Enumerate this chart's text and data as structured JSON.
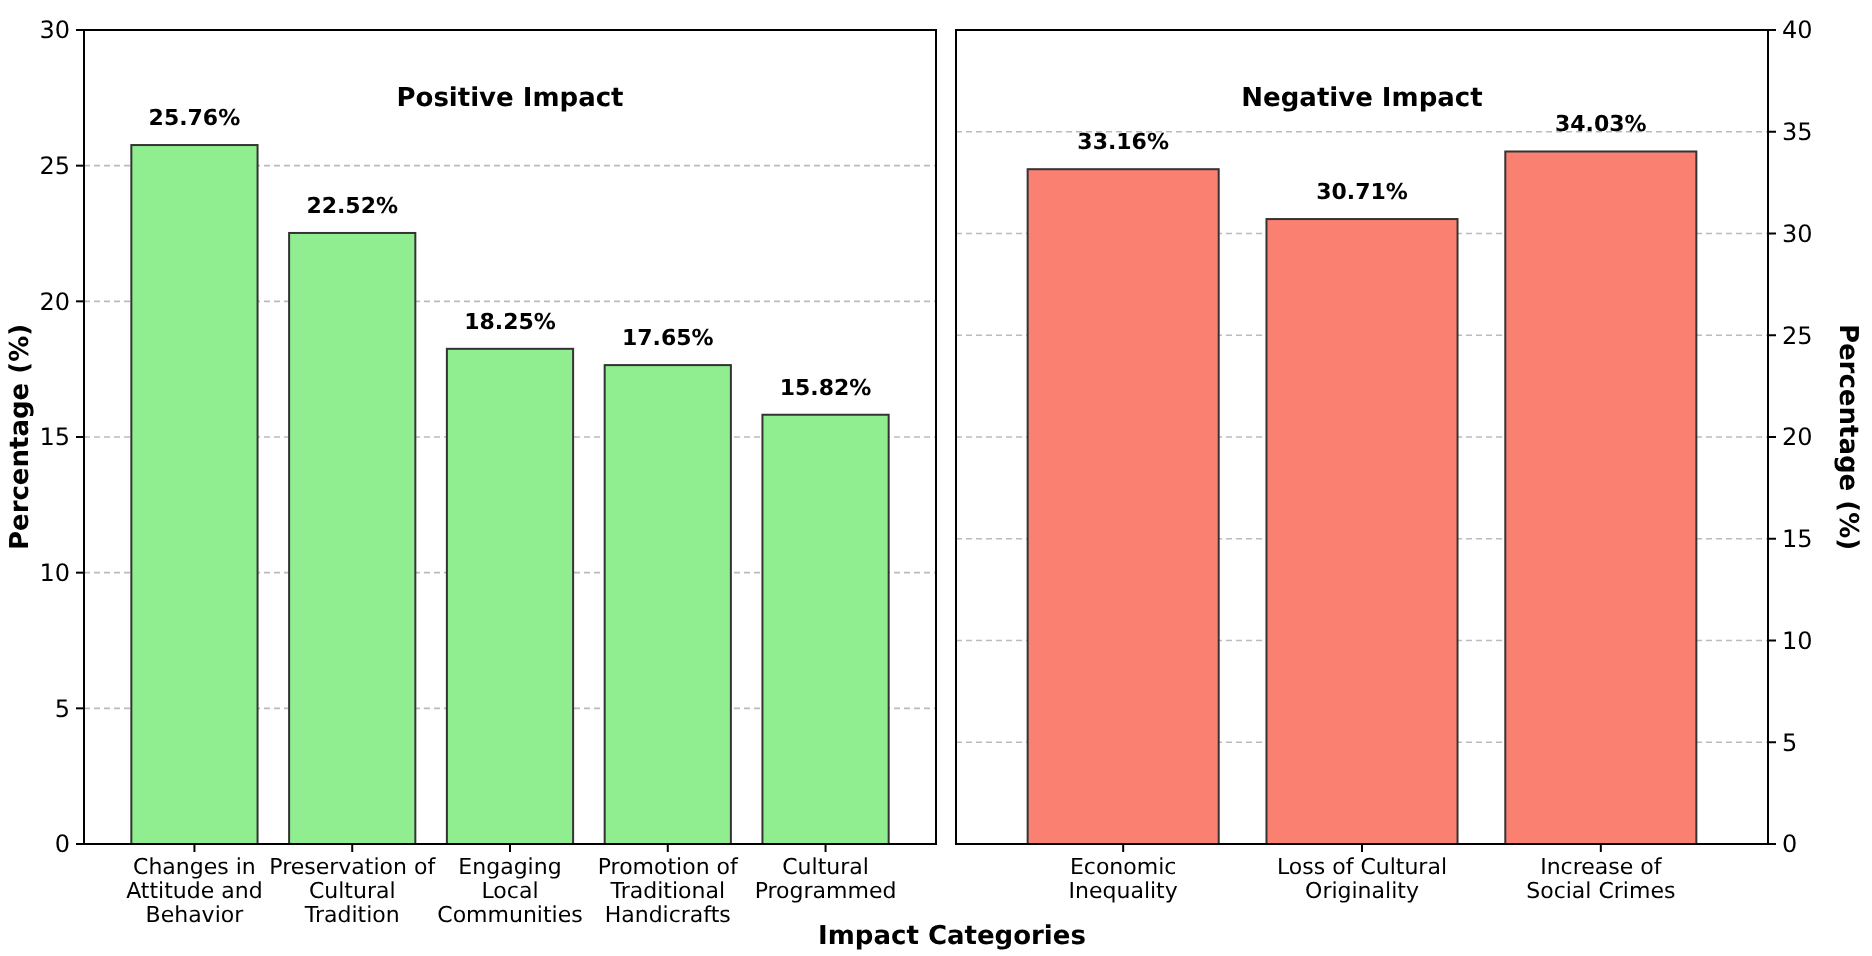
{
  "chart_data": [
    {
      "type": "bar",
      "title": "Positive Impact",
      "xlabel": "Impact Categories",
      "ylabel": "Percentage (%)",
      "categories": [
        "Changes in\nAttitude and\nBehavior",
        "Preservation of\nCultural\nTradition",
        "Engaging\nLocal\nCommunities",
        "Promotion of\nTraditional\nHandicrafts",
        "Cultural\nProgrammed"
      ],
      "values": [
        25.76,
        22.52,
        18.25,
        17.65,
        15.82
      ],
      "value_labels": [
        "25.76%",
        "22.52%",
        "18.25%",
        "17.65%",
        "15.82%"
      ],
      "color": "#90ee90",
      "ylim": [
        0,
        30
      ],
      "yticks": [
        0,
        5,
        10,
        15,
        20,
        25,
        30
      ],
      "grid": "y"
    },
    {
      "type": "bar",
      "title": "Negative Impact",
      "y2label": "Percentage (%)",
      "categories": [
        "Economic\nInequality",
        "Loss of Cultural\nOriginality",
        "Increase of\nSocial Crimes"
      ],
      "series": [
        {
          "values": [
            33.16,
            30.71,
            34.03
          ],
          "value_labels": [
            "33.16%",
            "30.71%",
            "34.03%"
          ],
          "color": "#fa8072",
          "axis": "y2"
        }
      ],
      "y2lim": [
        0,
        40
      ],
      "y2ticks": [
        0,
        5,
        10,
        15,
        20,
        25,
        30,
        35,
        40
      ],
      "grid": "y"
    }
  ]
}
